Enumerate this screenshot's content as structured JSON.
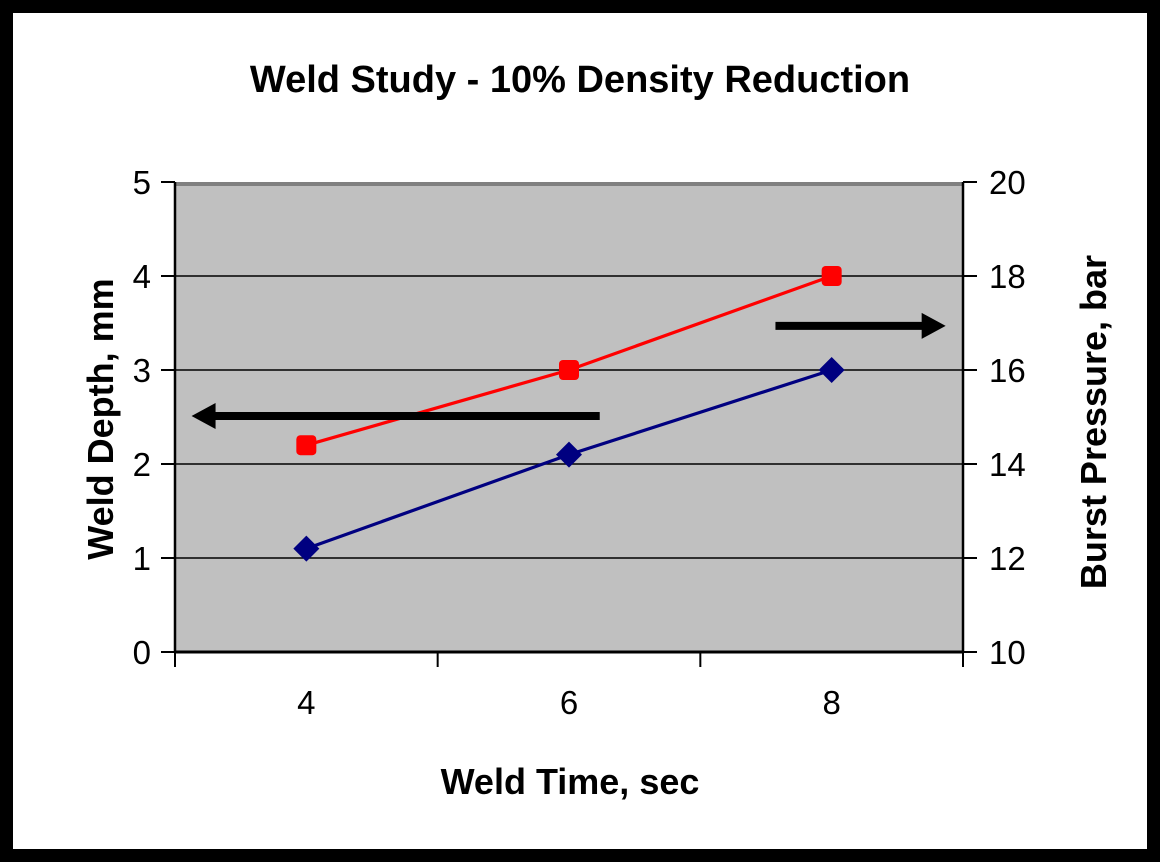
{
  "window": {
    "background": "#FFFFFF",
    "frame_color": "#000000"
  },
  "chart_data": {
    "type": "line",
    "title": "Weld Study - 10%  Density Reduction",
    "xlabel": "Weld Time, sec",
    "x_categories": [
      "4",
      "6",
      "8"
    ],
    "grid": true,
    "plot_bg": "#C0C0C0",
    "plot_top_edge_color": "#808080",
    "gridline_color": "#000000",
    "left_axis": {
      "label": "Weld Depth, mm",
      "min": 0,
      "max": 5,
      "ticks": [
        0,
        1,
        2,
        3,
        4,
        5
      ]
    },
    "right_axis": {
      "label": "Burst Pressure, bar",
      "min": 10,
      "max": 20,
      "ticks": [
        10,
        12,
        14,
        16,
        18,
        20
      ]
    },
    "series": [
      {
        "name": "Weld Depth",
        "axis": "left",
        "color": "#000080",
        "marker": "diamond",
        "values": [
          1.1,
          2.1,
          3.0
        ]
      },
      {
        "name": "Burst Pressure",
        "axis": "right",
        "color": "#FF0000",
        "marker": "square",
        "values": [
          14.4,
          16.0,
          18.0
        ]
      }
    ],
    "annotations": [
      {
        "name": "left-axis-arrow",
        "type": "arrow",
        "direction": "left",
        "color": "#000000",
        "y_left_value": 2.51,
        "fx_tail": 0.539,
        "fx_tip": 0.021
      },
      {
        "name": "right-axis-arrow",
        "type": "arrow",
        "direction": "right",
        "color": "#000000",
        "y_left_value": 3.47,
        "fx_tail": 0.762,
        "fx_tip": 0.978
      }
    ],
    "legend": null
  }
}
